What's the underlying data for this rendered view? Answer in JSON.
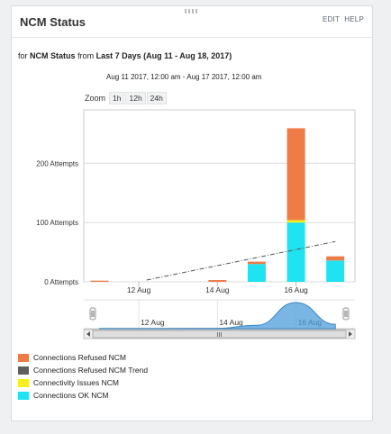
{
  "header": {
    "title": "NCM Status",
    "edit": "EDIT",
    "help": "HELP"
  },
  "subtitle": {
    "prefix": "for",
    "resource": "NCM Status",
    "from": "from",
    "period": "Last 7 Days (Aug 11 - Aug 18, 2017)"
  },
  "daterange": "Aug 11 2017, 12:00 am - Aug 17 2017, 12:00 am",
  "zoom": {
    "label": "Zoom",
    "buttons": [
      "1h",
      "12h",
      "24h"
    ]
  },
  "chart_data": {
    "type": "bar",
    "stacked": true,
    "title": "",
    "xlabel": "",
    "ylabel": "",
    "ylim": [
      0,
      290
    ],
    "y_ticks": [
      0,
      100,
      200
    ],
    "y_tick_labels": [
      "0 Attempts",
      "100 Attempts",
      "200 Attempts"
    ],
    "x_tick_labels": [
      "12 Aug",
      "14 Aug",
      "16 Aug"
    ],
    "x_tick_days": [
      12,
      14,
      16
    ],
    "xlim_days": [
      10.6,
      17.5
    ],
    "categories_days": [
      11,
      14,
      15,
      16,
      17
    ],
    "series": [
      {
        "name": "Connections OK NCM",
        "color": "#1fe3f0",
        "values": [
          0,
          0,
          30,
          100,
          36
        ]
      },
      {
        "name": "Connectivity Issues NCM",
        "color": "#f6ee1e",
        "values": [
          0,
          0,
          0,
          4,
          0
        ]
      },
      {
        "name": "Connections Refused NCM",
        "color": "#ef7b47",
        "values": [
          2,
          3,
          4,
          155,
          7
        ]
      }
    ],
    "trend": {
      "name": "Connections Refused NCM Trend",
      "color": "#555555",
      "x_days": [
        12.2,
        17.0
      ],
      "y": [
        3,
        68
      ]
    },
    "navigator": {
      "x_tick_labels": [
        "12 Aug",
        "14 Aug",
        "16 Aug"
      ],
      "scroll_label": "III"
    },
    "legend": [
      {
        "label": "Connections Refused NCM",
        "color": "#ef7b47"
      },
      {
        "label": "Connections Refused NCM Trend",
        "color": "#5f5f5f"
      },
      {
        "label": "Connectivity Issues NCM",
        "color": "#f6ee1e"
      },
      {
        "label": "Connections OK NCM",
        "color": "#1fe3f0"
      }
    ]
  }
}
